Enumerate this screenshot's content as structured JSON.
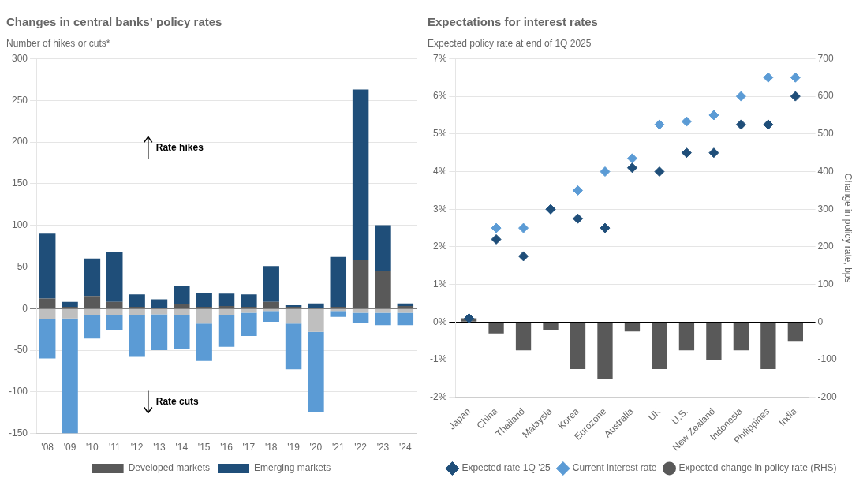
{
  "chart_data": [
    {
      "type": "bar",
      "title": "Changes in central banks’ policy rates",
      "subtitle": "Number of hikes or cuts*",
      "stacked": true,
      "grid": true,
      "legend": "bottom",
      "categories": [
        "'08",
        "'09",
        "'10",
        "'11",
        "'12",
        "'13",
        "'14",
        "'15",
        "'16",
        "'17",
        "'18",
        "'19",
        "'20",
        "'21",
        "'22",
        "'23",
        "'24"
      ],
      "series": [
        {
          "name": "Developed markets",
          "color": "#595959",
          "values": [
            12,
            2,
            15,
            8,
            2,
            1,
            5,
            2,
            3,
            2,
            8,
            2,
            1,
            2,
            58,
            45,
            3
          ]
        },
        {
          "name": "Emerging markets",
          "color": "#1f4e79",
          "values": [
            78,
            6,
            45,
            60,
            15,
            10,
            22,
            17,
            15,
            15,
            43,
            2,
            5,
            60,
            205,
            55,
            3
          ]
        },
        {
          "name": "Developed markets",
          "color": "#bfbfbf",
          "values": [
            -13,
            -12,
            -8,
            -8,
            -8,
            -7,
            -8,
            -18,
            -8,
            -5,
            -3,
            -18,
            -28,
            -3,
            -5,
            -5,
            -5
          ]
        },
        {
          "name": "Emerging markets",
          "color": "#5b9bd5",
          "values": [
            -47,
            -138,
            -28,
            -18,
            -50,
            -43,
            -40,
            -45,
            -38,
            -28,
            -13,
            -55,
            -96,
            -7,
            -12,
            -15,
            -15
          ]
        }
      ],
      "ylim": [
        -150,
        300
      ],
      "yticks": [
        -150,
        -100,
        -50,
        0,
        50,
        100,
        150,
        200,
        250,
        300
      ],
      "annotations": [
        {
          "text": "Rate hikes",
          "y": 193
        },
        {
          "text": "Rate cuts",
          "y": -112
        }
      ]
    },
    {
      "type": "bar",
      "title": "Expectations for interest rates",
      "subtitle": "Expected policy rate at end of 1Q 2025",
      "y2label": "Change in policy rate, bps",
      "grid": true,
      "legend": "bottom",
      "categories": [
        "Japan",
        "China",
        "Thailand",
        "Malaysia",
        "Korea",
        "Eurozone",
        "Australia",
        "UK",
        "U.S.",
        "New Zealand",
        "Indonesia",
        "Philippines",
        "India"
      ],
      "series": [
        {
          "name": "Expected change in policy rate (RHS)",
          "type": "bar",
          "axis": "y2",
          "color": "#595959",
          "values": [
            10,
            -30,
            -75,
            -20,
            -125,
            -150,
            -25,
            -125,
            -75,
            -100,
            -75,
            -125,
            -50
          ]
        },
        {
          "name": "Current interest rate",
          "type": "scatter",
          "marker": "diamond",
          "color": "#5b9bd5",
          "values": [
            0.1,
            2.5,
            2.5,
            3.0,
            3.5,
            4.0,
            4.35,
            5.25,
            5.33,
            5.5,
            6.0,
            6.5,
            6.5
          ]
        },
        {
          "name": "Expected rate 1Q '25",
          "type": "scatter",
          "marker": "diamond",
          "color": "#1f4e79",
          "values": [
            0.1,
            2.2,
            1.75,
            3.0,
            2.75,
            2.5,
            4.1,
            4.0,
            4.5,
            4.5,
            5.25,
            5.25,
            6.0
          ]
        }
      ],
      "ylim": [
        -2.0,
        7.0
      ],
      "yticks": [
        {
          "value": -2.0,
          "label": "-2%"
        },
        {
          "value": -1.0,
          "label": "-1%"
        },
        {
          "value": 0.0,
          "label": "0%"
        },
        {
          "value": 1.0,
          "label": "1%"
        },
        {
          "value": 2.0,
          "label": "2%"
        },
        {
          "value": 3.0,
          "label": "3%"
        },
        {
          "value": 4.0,
          "label": "4%"
        },
        {
          "value": 5.0,
          "label": "5%"
        },
        {
          "value": 6.0,
          "label": "6%"
        },
        {
          "value": 7.0,
          "label": "7%"
        }
      ],
      "y2lim": [
        -200,
        700
      ],
      "y2ticks": [
        -200,
        -100,
        0,
        100,
        200,
        300,
        400,
        500,
        600,
        700
      ]
    }
  ]
}
